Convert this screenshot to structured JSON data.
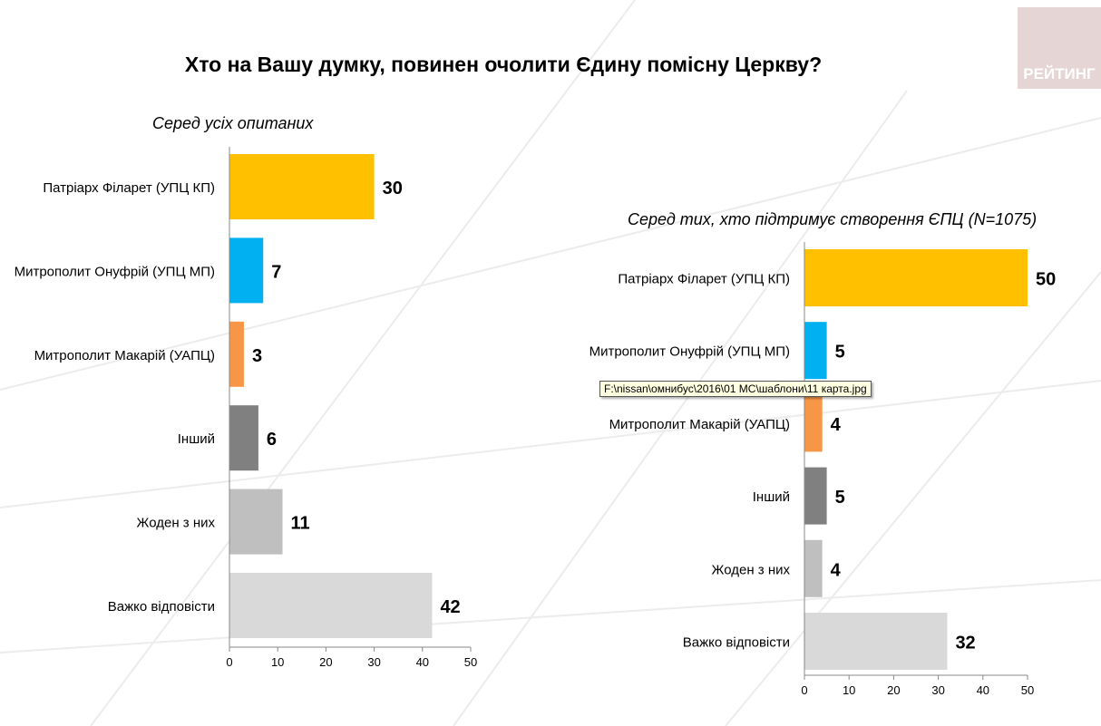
{
  "title": "Хто на Вашу думку, повинен очолити Єдину помісну Церкву?",
  "logo_text": "РЕЙТИНГ",
  "tooltip": "F:\\nissan\\омнибус\\2016\\01 МС\\шаблони\\11 карта.jpg",
  "chart_data": [
    {
      "type": "bar",
      "orientation": "horizontal",
      "title": "Серед усіх опитаних",
      "categories": [
        "Патріарх Філарет (УПЦ КП)",
        "Митрополит Онуфрій (УПЦ МП)",
        "Митрополит Макарій (УАПЦ)",
        "Інший",
        "Жоден з них",
        "Важко відповісти"
      ],
      "values": [
        30,
        7,
        3,
        6,
        11,
        42
      ],
      "colors": [
        "#FFC000",
        "#00B0F0",
        "#F79646",
        "#808080",
        "#BFBFBF",
        "#D9D9D9"
      ],
      "xlim": [
        0,
        50
      ],
      "xticks": [
        0,
        10,
        20,
        30,
        40,
        50
      ],
      "grid": false
    },
    {
      "type": "bar",
      "orientation": "horizontal",
      "title": "Серед тих, хто підтримує створення ЄПЦ (N=1075)",
      "categories": [
        "Патріарх Філарет (УПЦ КП)",
        "Митрополит Онуфрій (УПЦ МП)",
        "Митрополит Макарій (УАПЦ)",
        "Інший",
        "Жоден з них",
        "Важко відповісти"
      ],
      "values": [
        50,
        5,
        4,
        5,
        4,
        32
      ],
      "colors": [
        "#FFC000",
        "#00B0F0",
        "#F79646",
        "#808080",
        "#BFBFBF",
        "#D9D9D9"
      ],
      "xlim": [
        0,
        50
      ],
      "xticks": [
        0,
        10,
        20,
        30,
        40,
        50
      ],
      "grid": false
    }
  ]
}
